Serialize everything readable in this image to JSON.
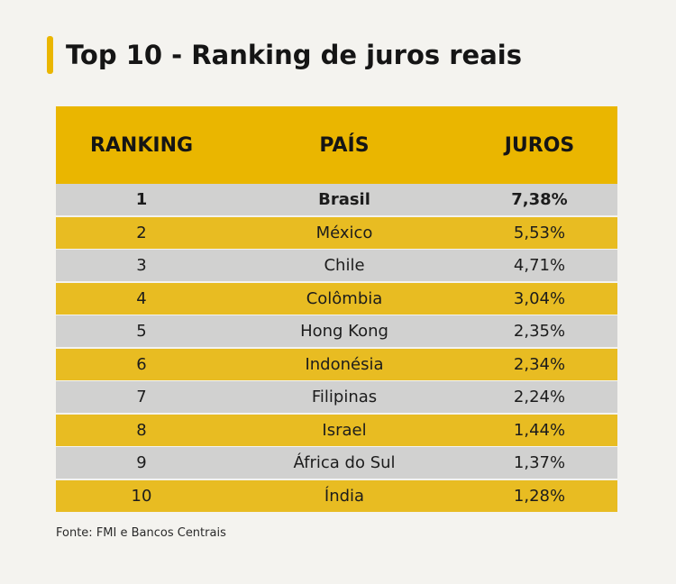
{
  "title": "Top 10 - Ranking de juros reais",
  "colors": {
    "accent": "#eab600",
    "row_gold": "#e8bc22",
    "row_gray": "#d1d1d0",
    "background": "#f4f3ef"
  },
  "chart_data": {
    "type": "table",
    "title": "Top 10 - Ranking de juros reais",
    "columns": [
      "RANKING",
      "PAÍS",
      "JUROS"
    ],
    "rows": [
      {
        "rank": "1",
        "country": "Brasil",
        "rate": "7,38%",
        "highlight": true
      },
      {
        "rank": "2",
        "country": "México",
        "rate": "5,53%"
      },
      {
        "rank": "3",
        "country": "Chile",
        "rate": "4,71%"
      },
      {
        "rank": "4",
        "country": "Colômbia",
        "rate": "3,04%"
      },
      {
        "rank": "5",
        "country": "Hong Kong",
        "rate": "2,35%"
      },
      {
        "rank": "6",
        "country": "Indonésia",
        "rate": "2,34%"
      },
      {
        "rank": "7",
        "country": "Filipinas",
        "rate": "2,24%"
      },
      {
        "rank": "8",
        "country": "Israel",
        "rate": "1,44%"
      },
      {
        "rank": "9",
        "country": "África do Sul",
        "rate": "1,37%"
      },
      {
        "rank": "10",
        "country": "Índia",
        "rate": "1,28%"
      }
    ],
    "source": "Fonte: FMI e Bancos Centrais"
  }
}
